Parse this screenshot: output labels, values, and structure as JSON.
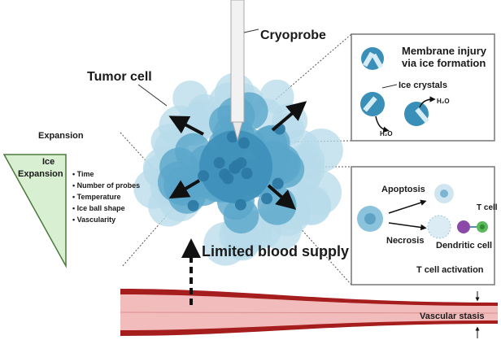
{
  "labels": {
    "cryoprobe": "Cryoprobe",
    "tumor_cell": "Tumor cell",
    "expansion": "Expansion",
    "ice_expansion": [
      "Ice",
      "Expansion"
    ],
    "factors": [
      "Time",
      "Number of probes",
      "Temperature",
      "Ice ball shape",
      "Vascularity"
    ],
    "limited_blood_supply": "Limited blood supply",
    "vascular_stasis": "Vascular stasis"
  },
  "panel_membrane": {
    "title": [
      "Membrane injury",
      "via ice formation"
    ],
    "ice_crystals": "Ice crystals",
    "water_1": "H₂O",
    "water_2": "H₂O"
  },
  "panel_immune": {
    "apoptosis": "Apoptosis",
    "necrosis": "Necrosis",
    "t_cell": "T cell",
    "dendritic_cell": "Dendritic cell",
    "caption": "T cell activation"
  },
  "colors": {
    "tumor_dark": "#2f7fa8",
    "tumor_light": "#b7dbea",
    "ice_triangle": "#d9efd2",
    "vessel_wall": "#a51d1d",
    "vessel_lumen": "#f3bcbc",
    "dendritic": "#8b4aa8",
    "t_cell": "#5cb85c"
  }
}
